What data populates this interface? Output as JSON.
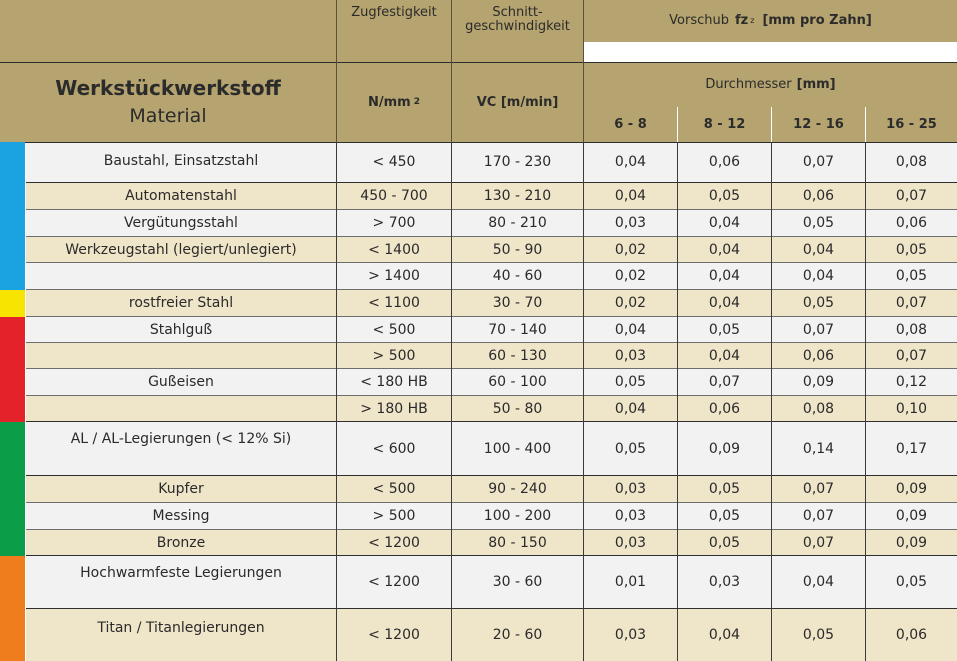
{
  "header": {
    "col_material_title": "Werkstückwerkstoff",
    "col_material_subtitle": "Material",
    "col_strength_title": "Zugfestigkeit",
    "col_strength_unit": "N/mm",
    "col_strength_unit_sup": "2",
    "col_speed_title": "Schnitt-\ngeschwindigkeit",
    "col_speed_unit": "VC [m/min]",
    "feed_title_prefix": "Vorschub",
    "feed_symbol": "fz",
    "feed_symbol_sub": "z",
    "feed_unit": "[mm pro Zahn]",
    "diameter_label": "Durchmesser",
    "diameter_unit": "[mm]",
    "diameter_ranges": [
      "6 - 8",
      "8 - 12",
      "12 - 16",
      "16 - 25"
    ]
  },
  "colors": {
    "header_bg": "#b5a46f",
    "row_white": "#f2f2f2",
    "row_cream": "#efe5c9",
    "group_blue": "#1aa3e0",
    "group_yellow": "#f7e400",
    "group_red": "#e3222a",
    "group_green": "#0c9d48",
    "group_orange": "#ef7d1e"
  },
  "rows": [
    {
      "material": "Baustahl, Einsatzstahl",
      "strength": "< 450",
      "speed": "170 - 230",
      "feeds": [
        "0,04",
        "0,06",
        "0,07",
        "0,08"
      ]
    },
    {
      "material": "Automatenstahl",
      "strength": "450 - 700",
      "speed": "130 - 210",
      "feeds": [
        "0,04",
        "0,05",
        "0,06",
        "0,07"
      ]
    },
    {
      "material": "Vergütungsstahl",
      "strength": "> 700",
      "speed": "80 - 210",
      "feeds": [
        "0,03",
        "0,04",
        "0,05",
        "0,06"
      ]
    },
    {
      "material": "Werkzeugstahl (legiert/unlegiert)",
      "strength": "< 1400",
      "speed": "50 - 90",
      "feeds": [
        "0,02",
        "0,04",
        "0,04",
        "0,05"
      ]
    },
    {
      "material": "",
      "strength": "> 1400",
      "speed": "40 - 60",
      "feeds": [
        "0,02",
        "0,04",
        "0,04",
        "0,05"
      ]
    },
    {
      "material": "rostfreier Stahl",
      "strength": "< 1100",
      "speed": "30 - 70",
      "feeds": [
        "0,02",
        "0,04",
        "0,05",
        "0,07"
      ]
    },
    {
      "material": "Stahlguß",
      "strength": "< 500",
      "speed": "70 - 140",
      "feeds": [
        "0,04",
        "0,05",
        "0,07",
        "0,08"
      ]
    },
    {
      "material": "",
      "strength": "> 500",
      "speed": "60 - 130",
      "feeds": [
        "0,03",
        "0,04",
        "0,06",
        "0,07"
      ]
    },
    {
      "material": "Gußeisen",
      "strength": "< 180 HB",
      "speed": "60 - 100",
      "feeds": [
        "0,05",
        "0,07",
        "0,09",
        "0,12"
      ]
    },
    {
      "material": "",
      "strength": "> 180 HB",
      "speed": "50 - 80",
      "feeds": [
        "0,04",
        "0,06",
        "0,08",
        "0,10"
      ]
    },
    {
      "material": "AL / AL-Legierungen (< 12% Si)",
      "strength": "< 600",
      "speed": "100 - 400",
      "feeds": [
        "0,05",
        "0,09",
        "0,14",
        "0,17"
      ]
    },
    {
      "material": "Kupfer",
      "strength": "< 500",
      "speed": "90 - 240",
      "feeds": [
        "0,03",
        "0,05",
        "0,07",
        "0,09"
      ]
    },
    {
      "material": "Messing",
      "strength": "> 500",
      "speed": "100 - 200",
      "feeds": [
        "0,03",
        "0,05",
        "0,07",
        "0,09"
      ]
    },
    {
      "material": "Bronze",
      "strength": "< 1200",
      "speed": "80 - 150",
      "feeds": [
        "0,03",
        "0,05",
        "0,07",
        "0,09"
      ]
    },
    {
      "material": "Hochwarmfeste Legierungen",
      "strength": "< 1200",
      "speed": "30 - 60",
      "feeds": [
        "0,01",
        "0,03",
        "0,04",
        "0,05"
      ]
    },
    {
      "material": "Titan / Titanlegierungen",
      "strength": "< 1200",
      "speed": "20 - 60",
      "feeds": [
        "0,03",
        "0,04",
        "0,05",
        "0,06"
      ]
    }
  ]
}
